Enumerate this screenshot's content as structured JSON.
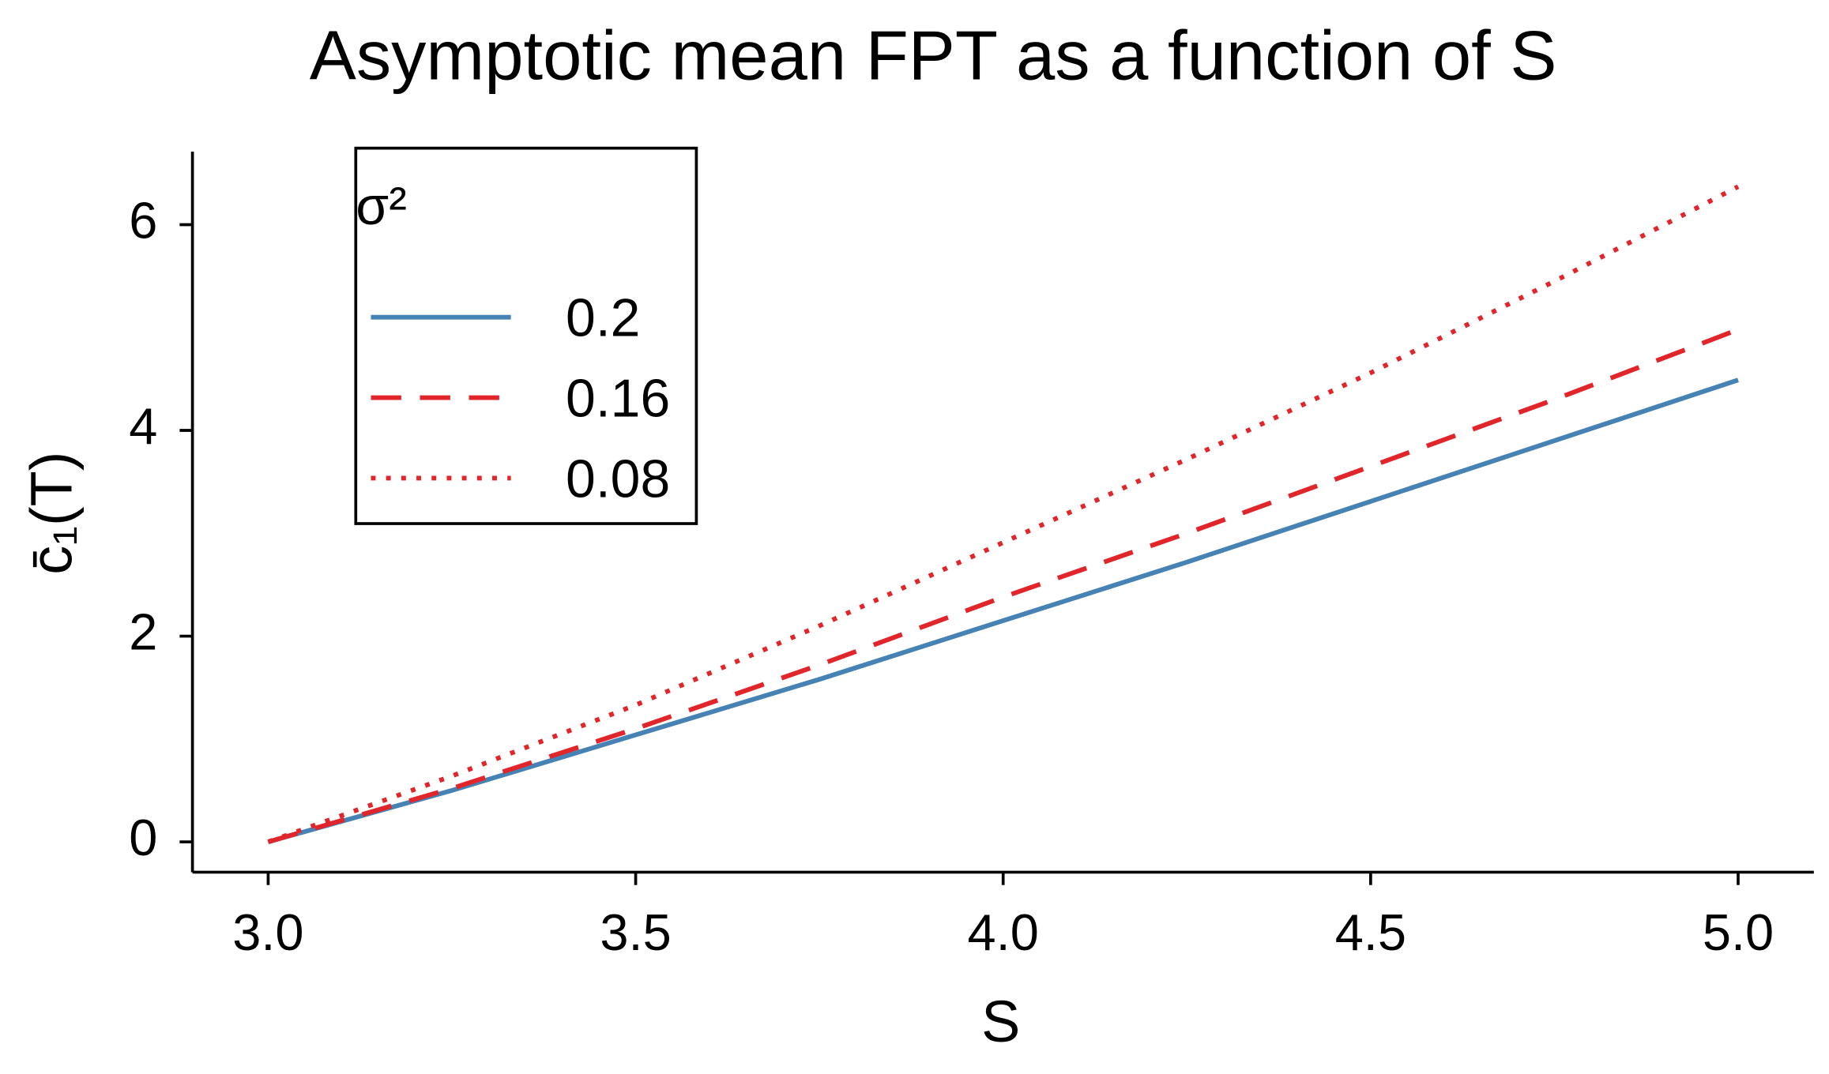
{
  "chart_data": {
    "type": "line",
    "title": "Asymptotic mean FPT as a function of S",
    "xlabel": "S",
    "ylabel": "c̄₁(T)",
    "x": [
      3.0,
      3.25,
      3.5,
      3.75,
      4.0,
      4.25,
      4.5,
      4.75,
      5.0
    ],
    "series": [
      {
        "name": "0.2",
        "color": "#4682b4",
        "dash": "solid",
        "values": [
          0,
          0.5,
          1.04,
          1.58,
          2.15,
          2.72,
          3.31,
          3.9,
          4.49
        ]
      },
      {
        "name": "0.16",
        "color": "#e0262b",
        "dash": "dashed",
        "values": [
          0,
          0.52,
          1.1,
          1.72,
          2.38,
          3.0,
          3.65,
          4.3,
          4.98
        ]
      },
      {
        "name": "0.08",
        "color": "#e0262b",
        "dash": "dotted",
        "values": [
          0,
          0.64,
          1.33,
          2.1,
          2.91,
          3.72,
          4.56,
          5.45,
          6.37
        ]
      }
    ],
    "legend_title": "σ²",
    "legend": "top-left",
    "xlim": [
      2.897,
      5.103
    ],
    "xticks": [
      {
        "value": 3,
        "label": "3.0"
      },
      {
        "value": 3.5,
        "label": "3.5"
      },
      {
        "value": 4,
        "label": "4.0"
      },
      {
        "value": 4.5,
        "label": "4.5"
      },
      {
        "value": 5,
        "label": "5.0"
      }
    ],
    "ylim": [
      -0.295,
      6.71
    ],
    "yticks": [
      0,
      2,
      4,
      6
    ],
    "grid": false
  }
}
